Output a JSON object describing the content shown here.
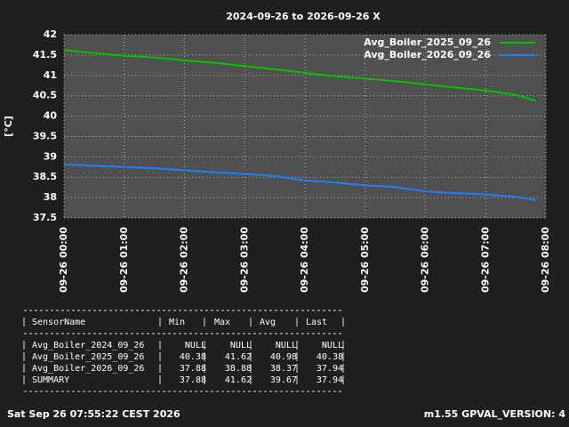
{
  "chart_data": {
    "type": "line",
    "title": "2024-09-26 to 2026-09-26 X",
    "ylabel": "[°C]",
    "x": [
      "09-26 00:00",
      "09-26 00:30",
      "09-26 01:00",
      "09-26 01:30",
      "09-26 02:00",
      "09-26 02:30",
      "09-26 03:00",
      "09-26 03:30",
      "09-26 04:00",
      "09-26 04:30",
      "09-26 05:00",
      "09-26 05:30",
      "09-26 06:00",
      "09-26 06:30",
      "09-26 07:00",
      "09-26 07:30",
      "09-26 07:50"
    ],
    "series": [
      {
        "name": "Avg_Boiler_2025_09_26",
        "color": "#00c000",
        "values": [
          41.62,
          41.55,
          41.48,
          41.44,
          41.37,
          41.31,
          41.23,
          41.15,
          41.06,
          40.98,
          40.92,
          40.86,
          40.78,
          40.7,
          40.63,
          40.52,
          40.38
        ]
      },
      {
        "name": "Avg_Boiler_2026_09_26",
        "color": "#1e7fff",
        "values": [
          38.82,
          38.78,
          38.75,
          38.72,
          38.67,
          38.62,
          38.58,
          38.53,
          38.42,
          38.37,
          38.3,
          38.26,
          38.15,
          38.11,
          38.08,
          38.02,
          37.94
        ]
      }
    ],
    "xlim": [
      "09-26 00:00",
      "09-26 08:00"
    ],
    "xticks": [
      "09-26 00:00",
      "09-26 01:00",
      "09-26 02:00",
      "09-26 03:00",
      "09-26 04:00",
      "09-26 05:00",
      "09-26 06:00",
      "09-26 07:00",
      "09-26 08:00"
    ],
    "ylim": [
      37.5,
      42
    ],
    "yticks": [
      37.5,
      38,
      38.5,
      39,
      39.5,
      40,
      40.5,
      41,
      41.5,
      42
    ],
    "grid": true,
    "legend": "top-right"
  },
  "table": {
    "header": [
      "SensorName",
      "Min",
      "Max",
      "Avg",
      "Last"
    ],
    "rows": [
      [
        "Avg_Boiler_2024_09_26",
        "NULL",
        "NULL",
        "NULL",
        "NULL"
      ],
      [
        "Avg_Boiler_2025_09_26",
        "40.38",
        "41.62",
        "40.98",
        "40.38"
      ],
      [
        "Avg_Boiler_2026_09_26",
        "37.88",
        "38.88",
        "38.37",
        "37.94"
      ],
      [
        "SUMMARY",
        "37.88",
        "41.62",
        "39.67",
        "37.94"
      ]
    ]
  },
  "footer": {
    "left": "Sat Sep 26 07:55:22 CEST 2026",
    "right": "m1.55 GPVAL_VERSION: 4"
  }
}
